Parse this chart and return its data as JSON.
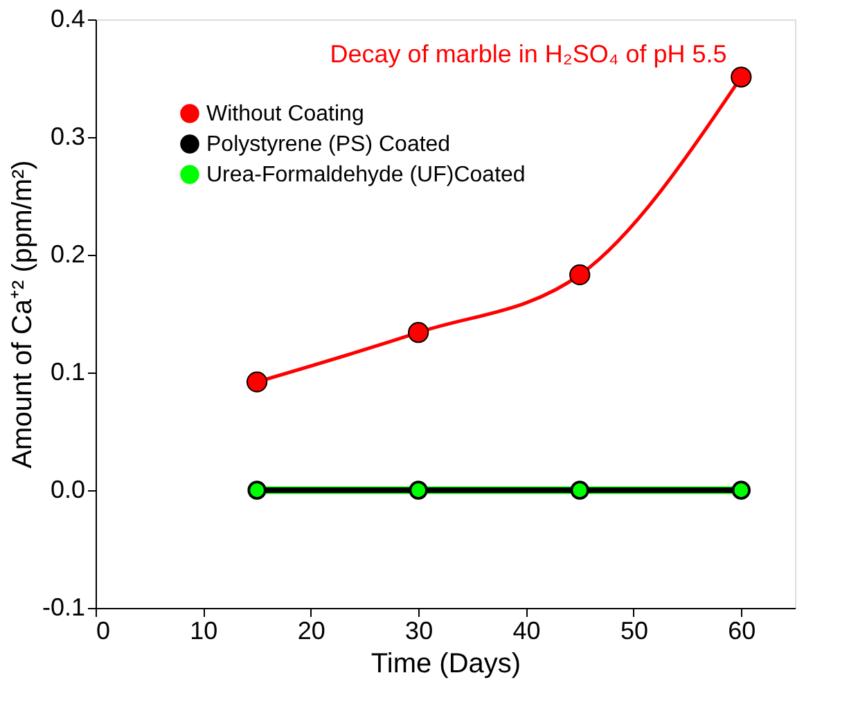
{
  "chart_data": {
    "type": "line",
    "title": "Decay of marble in H₂SO₄ of pH 5.5",
    "xlabel": "Time (Days)",
    "ylabel": "Amount of Ca⁺² (ppm/m²)",
    "x": [
      15,
      30,
      45,
      60
    ],
    "series": [
      {
        "name": "Without Coating",
        "color": "#ff0000",
        "values": [
          0.092,
          0.134,
          0.183,
          0.351
        ]
      },
      {
        "name": "Polystyrene (PS) Coated",
        "color": "#000000",
        "values": [
          0,
          0,
          0,
          0
        ]
      },
      {
        "name": "Urea-Formaldehyde (UF)Coated",
        "color": "#00ff00",
        "values": [
          0,
          0,
          0,
          0
        ]
      }
    ],
    "xlim": [
      0,
      65
    ],
    "xticks": [
      0,
      10,
      20,
      30,
      40,
      50,
      60
    ],
    "ylim": [
      -0.1,
      0.4
    ],
    "yticks": [
      -0.1,
      {
        "value": 0,
        "label": "0.0"
      },
      0.1,
      0.2,
      0.3,
      0.4
    ],
    "marker": "circle",
    "line_style": "solid",
    "legend": "top left",
    "grid": false
  }
}
